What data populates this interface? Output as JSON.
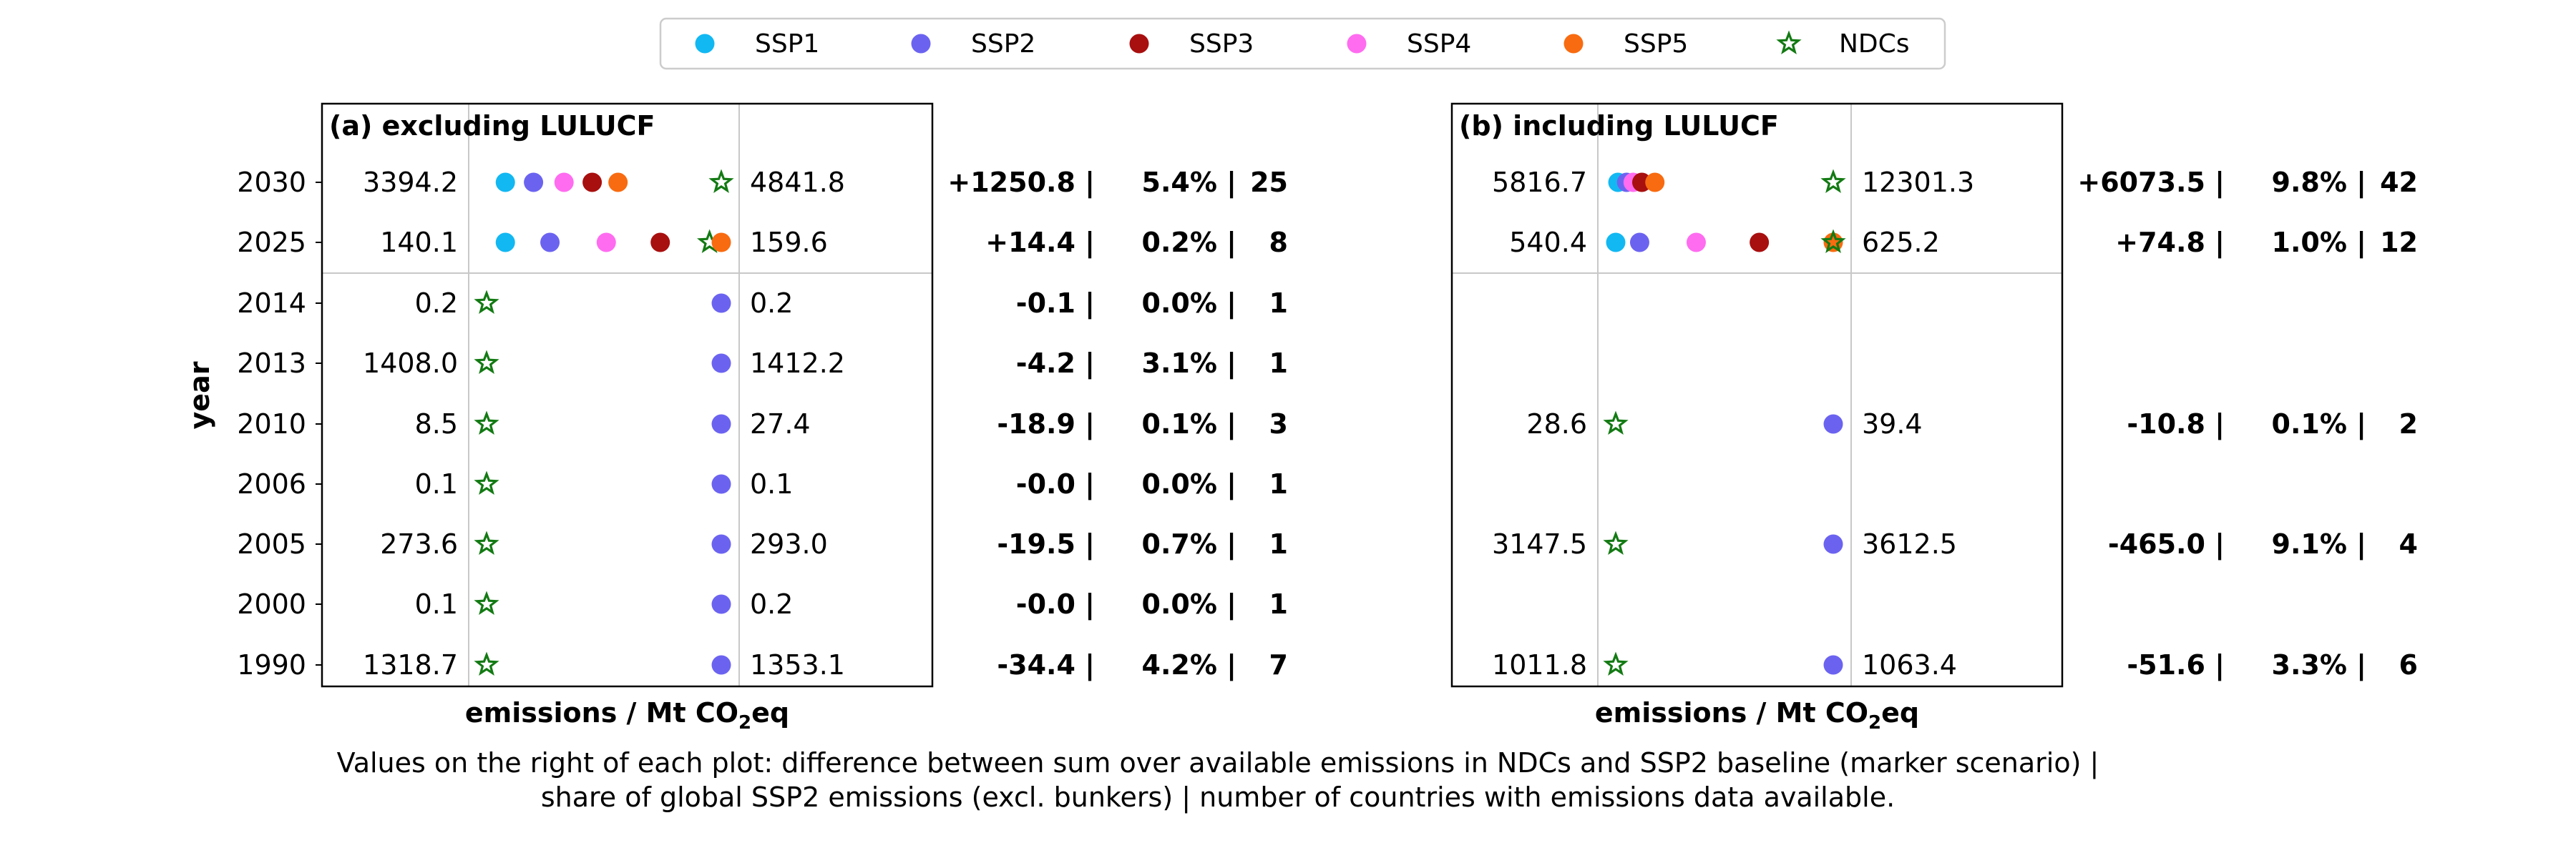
{
  "chart_data": {
    "type": "scatter",
    "legend": [
      {
        "label": "SSP1",
        "marker": "circle",
        "color": "#12b8f2"
      },
      {
        "label": "SSP2",
        "marker": "circle",
        "color": "#6b63f0"
      },
      {
        "label": "SSP3",
        "marker": "circle",
        "color": "#a80f0f"
      },
      {
        "label": "SSP4",
        "marker": "circle",
        "color": "#ff6cf0"
      },
      {
        "label": "SSP5",
        "marker": "circle",
        "color": "#f86b10"
      },
      {
        "label": "NDCs",
        "marker": "star",
        "color": "#137a13"
      }
    ],
    "ylabel": "year",
    "years": [
      "2030",
      "2025",
      "2014",
      "2013",
      "2010",
      "2006",
      "2005",
      "2000",
      "1990"
    ],
    "xlabel_main": "emissions / Mt CO",
    "xlabel_sub": "2",
    "xlabel_tail": "eq",
    "panels": [
      {
        "title": "(a) excluding LULUCF",
        "rows": [
          {
            "year": "2030",
            "min": "3394.2",
            "max": "4841.8",
            "diff": "+1250.8 |",
            "share": "5.4% |",
            "count": "25",
            "markers": [
              {
                "s": "SSP1",
                "p": 0.08
              },
              {
                "s": "SSP2",
                "p": 0.2
              },
              {
                "s": "SSP4",
                "p": 0.33
              },
              {
                "s": "SSP3",
                "p": 0.45
              },
              {
                "s": "SSP5",
                "p": 0.56
              },
              {
                "s": "NDCs",
                "p": 1.0
              }
            ]
          },
          {
            "year": "2025",
            "min": "140.1",
            "max": "159.6",
            "diff": "+14.4 |",
            "share": "0.2% |",
            "count": "8",
            "markers": [
              {
                "s": "SSP1",
                "p": 0.08
              },
              {
                "s": "SSP2",
                "p": 0.27
              },
              {
                "s": "SSP4",
                "p": 0.51
              },
              {
                "s": "SSP3",
                "p": 0.74
              },
              {
                "s": "NDCs",
                "p": 0.95
              },
              {
                "s": "SSP5",
                "p": 1.0
              }
            ]
          },
          {
            "year": "2014",
            "min": "0.2",
            "max": "0.2",
            "diff": "-0.1 |",
            "share": "0.0% |",
            "count": "1",
            "markers": [
              {
                "s": "NDCs",
                "p": 0.0
              },
              {
                "s": "SSP2",
                "p": 1.0
              }
            ]
          },
          {
            "year": "2013",
            "min": "1408.0",
            "max": "1412.2",
            "diff": "-4.2 |",
            "share": "3.1% |",
            "count": "1",
            "markers": [
              {
                "s": "NDCs",
                "p": 0.0
              },
              {
                "s": "SSP2",
                "p": 1.0
              }
            ]
          },
          {
            "year": "2010",
            "min": "8.5",
            "max": "27.4",
            "diff": "-18.9 |",
            "share": "0.1% |",
            "count": "3",
            "markers": [
              {
                "s": "NDCs",
                "p": 0.0
              },
              {
                "s": "SSP2",
                "p": 1.0
              }
            ]
          },
          {
            "year": "2006",
            "min": "0.1",
            "max": "0.1",
            "diff": "-0.0 |",
            "share": "0.0% |",
            "count": "1",
            "markers": [
              {
                "s": "NDCs",
                "p": 0.0
              },
              {
                "s": "SSP2",
                "p": 1.0
              }
            ]
          },
          {
            "year": "2005",
            "min": "273.6",
            "max": "293.0",
            "diff": "-19.5 |",
            "share": "0.7% |",
            "count": "1",
            "markers": [
              {
                "s": "NDCs",
                "p": 0.0
              },
              {
                "s": "SSP2",
                "p": 1.0
              }
            ]
          },
          {
            "year": "2000",
            "min": "0.1",
            "max": "0.2",
            "diff": "-0.0 |",
            "share": "0.0% |",
            "count": "1",
            "markers": [
              {
                "s": "NDCs",
                "p": 0.0
              },
              {
                "s": "SSP2",
                "p": 1.0
              }
            ]
          },
          {
            "year": "1990",
            "min": "1318.7",
            "max": "1353.1",
            "diff": "-34.4 |",
            "share": "4.2% |",
            "count": "7",
            "markers": [
              {
                "s": "NDCs",
                "p": 0.0
              },
              {
                "s": "SSP2",
                "p": 1.0
              }
            ]
          }
        ]
      },
      {
        "title": "(b) including LULUCF",
        "rows": [
          {
            "year": "2030",
            "min": "5816.7",
            "max": "12301.3",
            "diff": "+6073.5 |",
            "share": "9.8% |",
            "count": "42",
            "markers": [
              {
                "s": "SSP1",
                "p": 0.01
              },
              {
                "s": "SSP2",
                "p": 0.05
              },
              {
                "s": "SSP4",
                "p": 0.08
              },
              {
                "s": "SSP3",
                "p": 0.12
              },
              {
                "s": "SSP5",
                "p": 0.18
              },
              {
                "s": "NDCs",
                "p": 1.0
              }
            ]
          },
          {
            "year": "2025",
            "min": "540.4",
            "max": "625.2",
            "diff": "+74.8 |",
            "share": "1.0% |",
            "count": "12",
            "markers": [
              {
                "s": "SSP1",
                "p": 0.0
              },
              {
                "s": "SSP2",
                "p": 0.11
              },
              {
                "s": "SSP4",
                "p": 0.37
              },
              {
                "s": "SSP3",
                "p": 0.66
              },
              {
                "s": "SSP5",
                "p": 1.0
              },
              {
                "s": "NDCs",
                "p": 1.0
              }
            ]
          },
          {
            "year": "2010",
            "min": "28.6",
            "max": "39.4",
            "diff": "-10.8 |",
            "share": "0.1% |",
            "count": "2",
            "markers": [
              {
                "s": "NDCs",
                "p": 0.0
              },
              {
                "s": "SSP2",
                "p": 1.0
              }
            ]
          },
          {
            "year": "2005",
            "min": "3147.5",
            "max": "3612.5",
            "diff": "-465.0 |",
            "share": "9.1% |",
            "count": "4",
            "markers": [
              {
                "s": "NDCs",
                "p": 0.0
              },
              {
                "s": "SSP2",
                "p": 1.0
              }
            ]
          },
          {
            "year": "1990",
            "min": "1011.8",
            "max": "1063.4",
            "diff": "-51.6 |",
            "share": "3.3% |",
            "count": "6",
            "markers": [
              {
                "s": "NDCs",
                "p": 0.0
              },
              {
                "s": "SSP2",
                "p": 1.0
              }
            ]
          }
        ]
      }
    ],
    "caption_line1": "Values on the right of each plot: difference between sum over available emissions in NDCs and SSP2 baseline (marker scenario) |",
    "caption_line2": "share of global SSP2 emissions (excl. bunkers) | number of countries with emissions data available."
  }
}
